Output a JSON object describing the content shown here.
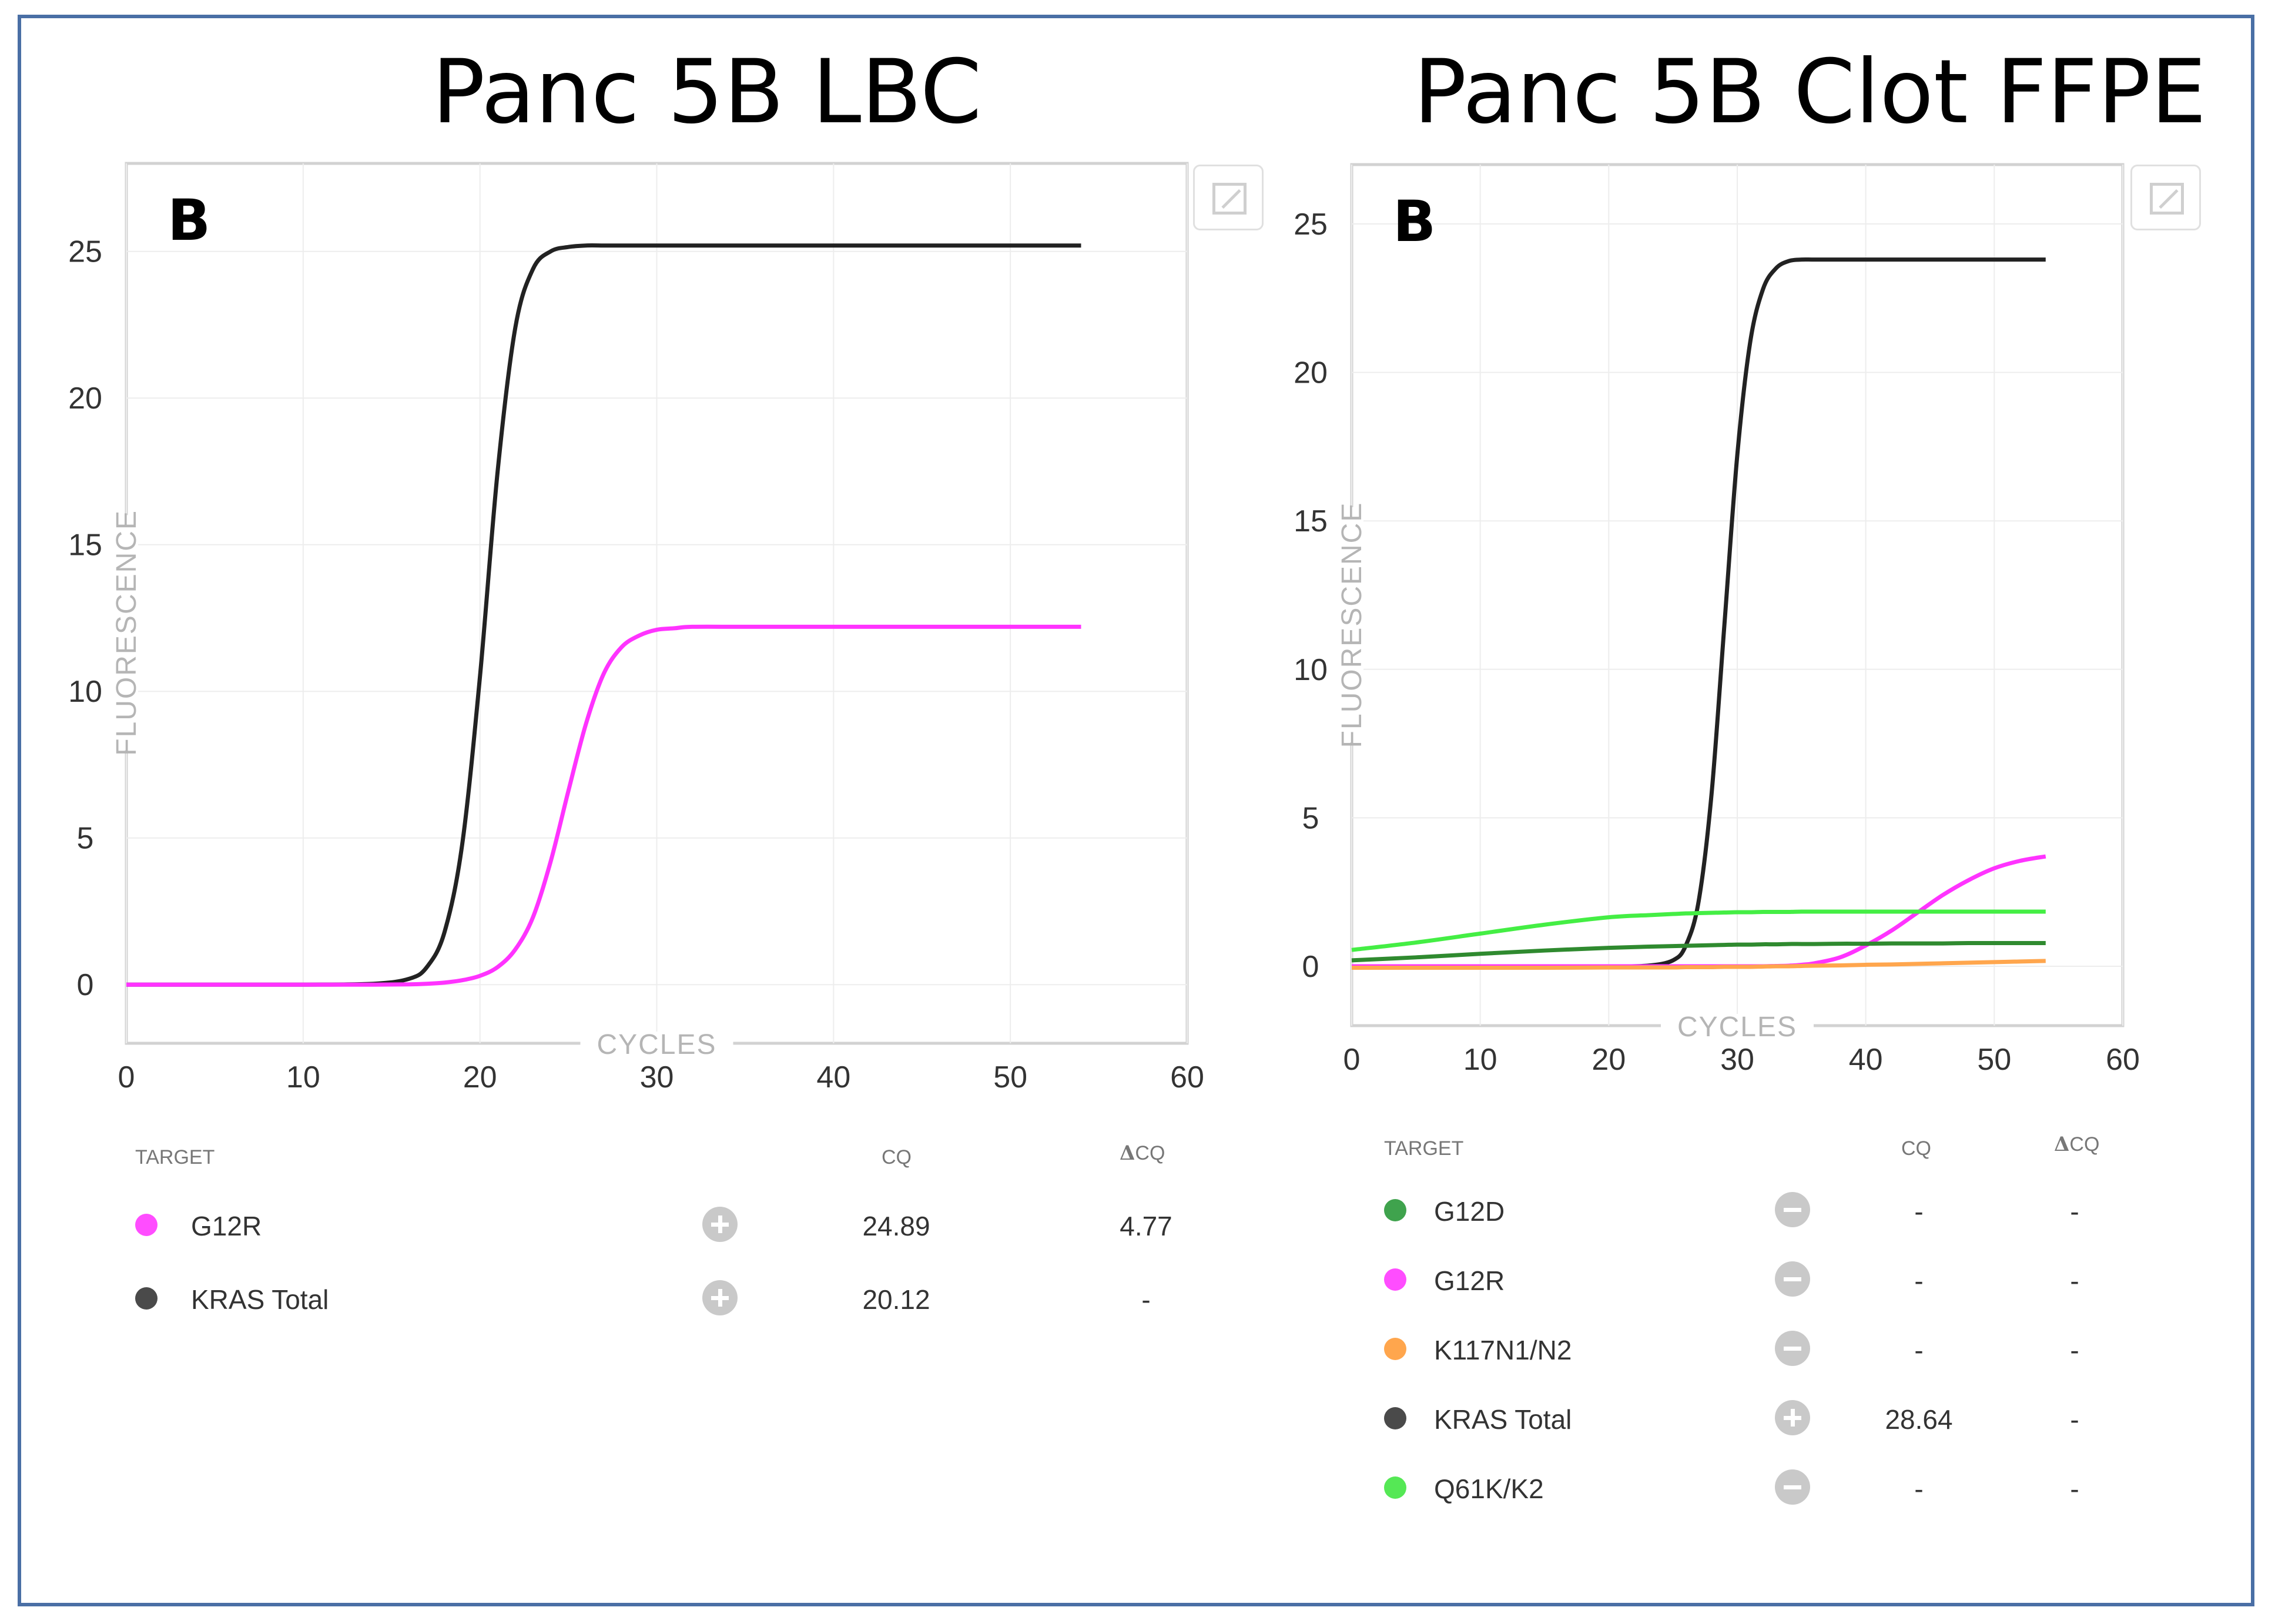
{
  "panels": {
    "left": {
      "title": "Panc 5B LBC",
      "legend": {
        "headers": {
          "target": "TARGET",
          "cq": "CQ",
          "delta_symbol": "Δ",
          "delta_cq": "CQ"
        },
        "rows": [
          {
            "name": "G12R",
            "color": "#ff4dff",
            "status": "plus",
            "cq": "24.89",
            "delta": "4.77"
          },
          {
            "name": "KRAS Total",
            "color": "#4a4a4a",
            "status": "plus",
            "cq": "20.12",
            "delta": "-"
          }
        ]
      }
    },
    "right": {
      "title": "Panc 5B Clot FFPE",
      "legend": {
        "headers": {
          "target": "TARGET",
          "cq": "CQ",
          "delta_symbol": "Δ",
          "delta_cq": "CQ"
        },
        "rows": [
          {
            "name": "G12D",
            "color": "#3fa34d",
            "status": "minus",
            "cq": "-",
            "delta": "-"
          },
          {
            "name": "G12R",
            "color": "#ff4dff",
            "status": "minus",
            "cq": "-",
            "delta": "-"
          },
          {
            "name": "K117N1/N2",
            "color": "#ffa64d",
            "status": "minus",
            "cq": "-",
            "delta": "-"
          },
          {
            "name": "KRAS Total",
            "color": "#4a4a4a",
            "status": "plus",
            "cq": "28.64",
            "delta": "-"
          },
          {
            "name": "Q61K/K2",
            "color": "#55e855",
            "status": "minus",
            "cq": "-",
            "delta": "-"
          }
        ]
      }
    }
  },
  "chart_data": [
    {
      "type": "line",
      "title": "Panc 5B LBC",
      "panel_label": "B",
      "xlabel": "CYCLES",
      "ylabel": "FLUORESCENCE",
      "xlim": [
        0,
        60
      ],
      "ylim": [
        -2,
        28
      ],
      "xticks": [
        0,
        10,
        20,
        30,
        40,
        50,
        60
      ],
      "yticks": [
        0,
        5,
        10,
        15,
        20,
        25
      ],
      "grid": true,
      "x": [
        0,
        5,
        10,
        14,
        16,
        17,
        18,
        19,
        20,
        21,
        22,
        23,
        24,
        25,
        26,
        27,
        28,
        29,
        30,
        31,
        32,
        35,
        40,
        45,
        50,
        54
      ],
      "series": [
        {
          "name": "KRAS Total",
          "color": "#222222",
          "values": [
            0,
            0,
            0,
            0.03,
            0.2,
            0.6,
            1.8,
            4.8,
            10.5,
            17.5,
            22.4,
            24.4,
            25.0,
            25.15,
            25.2,
            25.2,
            25.2,
            25.2,
            25.2,
            25.2,
            25.2,
            25.2,
            25.2,
            25.2,
            25.2,
            25.2
          ]
        },
        {
          "name": "G12R",
          "color": "#ff33ff",
          "values": [
            0,
            0,
            0,
            0,
            0.01,
            0.03,
            0.07,
            0.15,
            0.3,
            0.6,
            1.2,
            2.3,
            4.2,
            6.6,
            8.9,
            10.6,
            11.5,
            11.9,
            12.1,
            12.15,
            12.2,
            12.2,
            12.2,
            12.2,
            12.2,
            12.2
          ]
        }
      ]
    },
    {
      "type": "line",
      "title": "Panc 5B Clot FFPE",
      "panel_label": "B",
      "xlabel": "CYCLES",
      "ylabel": "FLUORESCENCE",
      "xlim": [
        0,
        60
      ],
      "ylim": [
        -2,
        27
      ],
      "xticks": [
        0,
        10,
        20,
        30,
        40,
        50,
        60
      ],
      "yticks": [
        0,
        5,
        10,
        15,
        20,
        25
      ],
      "grid": true,
      "x": [
        0,
        5,
        10,
        15,
        20,
        23,
        25,
        26,
        27,
        28,
        29,
        30,
        31,
        32,
        33,
        34,
        35,
        36,
        38,
        40,
        42,
        44,
        46,
        48,
        50,
        52,
        54
      ],
      "series": [
        {
          "name": "KRAS Total",
          "color": "#222222",
          "values": [
            0,
            0,
            0,
            0,
            0,
            0.02,
            0.2,
            0.7,
            2.2,
            5.8,
            11.5,
            17.2,
            21.0,
            22.8,
            23.5,
            23.75,
            23.8,
            23.8,
            23.8,
            23.8,
            23.8,
            23.8,
            23.8,
            23.8,
            23.8,
            23.8,
            23.8
          ]
        },
        {
          "name": "G12R",
          "color": "#ff33ff",
          "values": [
            0,
            0,
            0,
            0,
            0,
            0,
            0,
            0,
            0,
            0,
            0,
            0,
            0,
            0,
            0.01,
            0.02,
            0.05,
            0.1,
            0.3,
            0.7,
            1.2,
            1.8,
            2.4,
            2.9,
            3.3,
            3.55,
            3.7
          ]
        },
        {
          "name": "Q61K/K2",
          "color": "#44ee44",
          "values": [
            0.55,
            0.8,
            1.1,
            1.4,
            1.65,
            1.72,
            1.76,
            1.78,
            1.79,
            1.8,
            1.81,
            1.82,
            1.82,
            1.83,
            1.83,
            1.83,
            1.84,
            1.84,
            1.84,
            1.84,
            1.84,
            1.84,
            1.84,
            1.84,
            1.84,
            1.84,
            1.84
          ]
        },
        {
          "name": "G12D",
          "color": "#2f8a2f",
          "values": [
            0.2,
            0.3,
            0.42,
            0.53,
            0.62,
            0.66,
            0.68,
            0.69,
            0.7,
            0.71,
            0.72,
            0.73,
            0.73,
            0.74,
            0.74,
            0.75,
            0.75,
            0.75,
            0.76,
            0.76,
            0.77,
            0.77,
            0.77,
            0.78,
            0.78,
            0.78,
            0.78
          ]
        },
        {
          "name": "K117N1/N2",
          "color": "#ffa64d",
          "values": [
            -0.05,
            -0.05,
            -0.05,
            -0.05,
            -0.04,
            -0.04,
            -0.04,
            -0.03,
            -0.03,
            -0.03,
            -0.02,
            -0.02,
            -0.02,
            -0.01,
            0,
            0,
            0.01,
            0.02,
            0.03,
            0.05,
            0.06,
            0.08,
            0.1,
            0.12,
            0.14,
            0.16,
            0.18
          ]
        }
      ]
    }
  ]
}
